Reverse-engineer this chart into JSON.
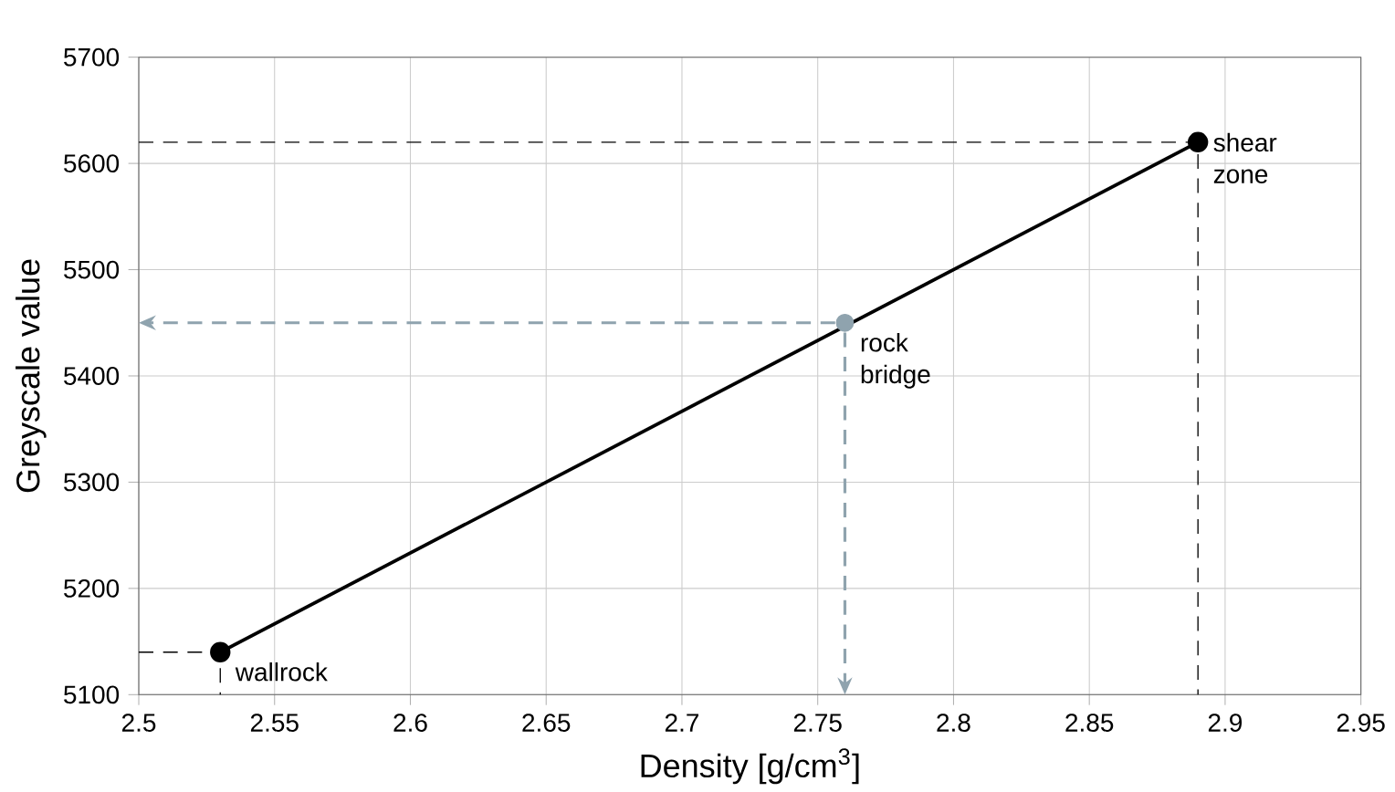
{
  "chart_data": {
    "type": "line",
    "xlabel": "Density [g/cm$^{3}$]",
    "ylabel": "Greyscale value",
    "xlim": [
      2.5,
      2.95
    ],
    "xticks": [
      2.5,
      2.55,
      2.6,
      2.65,
      2.7,
      2.75,
      2.8,
      2.85,
      2.9,
      2.95
    ],
    "ylim": [
      5100,
      5700
    ],
    "yticks": [
      5100,
      5200,
      5300,
      5400,
      5500,
      5600,
      5700
    ],
    "grid": true,
    "series": [
      {
        "color": "#000000",
        "x": [
          2.53,
          2.89
        ],
        "values": [
          5140,
          5620
        ],
        "marker": "circle",
        "line_style": "solid"
      },
      {
        "type": "scatter",
        "color": "#8fa3ae",
        "x": [
          2.76
        ],
        "values": [
          5450
        ],
        "marker": "circle"
      },
      {
        "type": "line",
        "color": "#000000",
        "x": [
          2.5,
          2.53,
          2.53
        ],
        "values": [
          5140,
          5140,
          5100
        ],
        "marker": "none",
        "line_style": "dashed"
      },
      {
        "type": "line",
        "color": "#000000",
        "x": [
          2.5,
          2.89,
          2.89
        ],
        "values": [
          5620,
          5620,
          5100
        ],
        "marker": "none",
        "line_style": "dashed"
      }
    ],
    "annotations": [
      {
        "text": "wallrock",
        "x": 2.53,
        "y": 5140
      },
      {
        "text": "rock bridge",
        "x": 2.76,
        "y": 5450
      },
      {
        "text": "shear zone",
        "x": 2.89,
        "y": 5620
      }
    ]
  }
}
